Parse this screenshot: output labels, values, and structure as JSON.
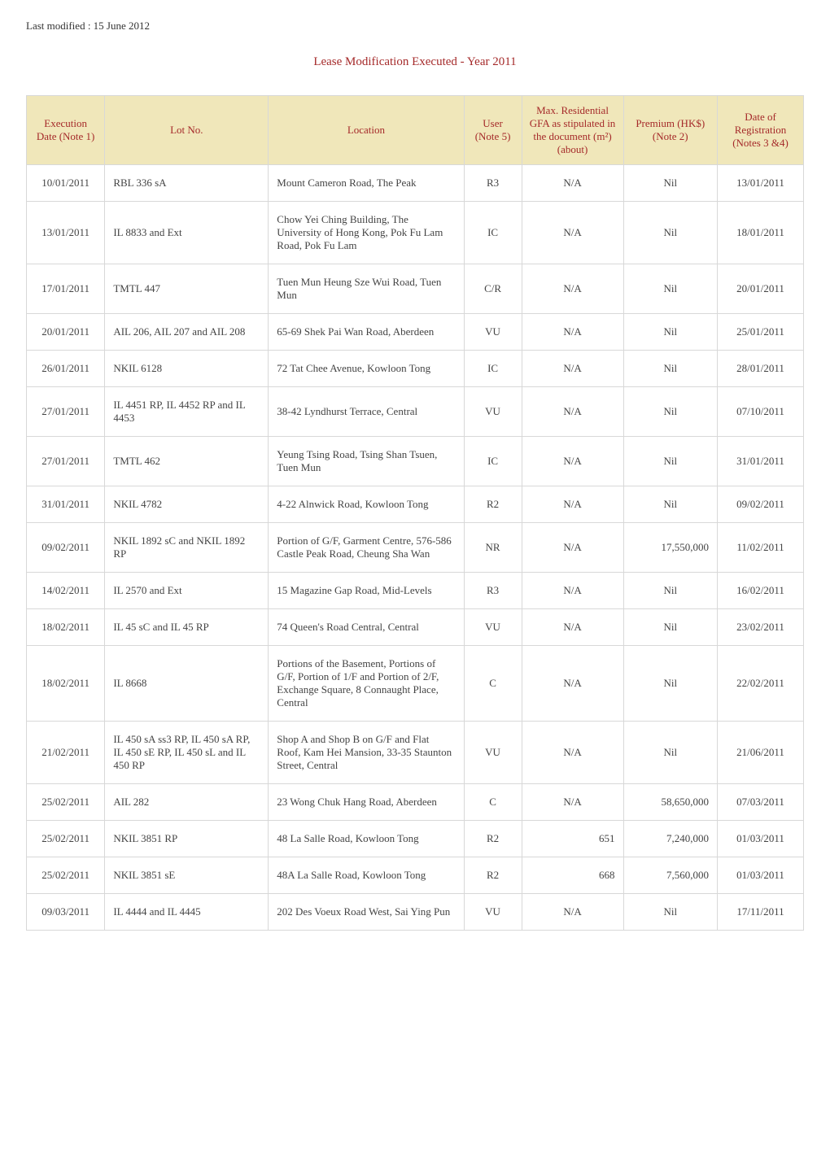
{
  "header": {
    "last_modified": "Last modified : 15 June 2012",
    "title": "Lease Modification Executed  -  Year 2011"
  },
  "colors": {
    "header_bg": "#f0e7ba",
    "header_text": "#a52a2a",
    "title_text": "#a52a2a",
    "border": "#d8d8d8",
    "body_text": "#444444"
  },
  "table": {
    "columns": [
      {
        "key": "exec",
        "label": "Execution Date (Note 1)"
      },
      {
        "key": "lot",
        "label": "Lot No."
      },
      {
        "key": "location",
        "label": "Location"
      },
      {
        "key": "user",
        "label": "User (Note 5)"
      },
      {
        "key": "gfa",
        "label": "Max. Residential GFA as stipulated in the document (m²)(about)"
      },
      {
        "key": "premium",
        "label": "Premium (HK$) (Note 2)"
      },
      {
        "key": "reg",
        "label": "Date of Registration (Notes 3 &4)"
      }
    ],
    "rows": [
      {
        "exec": "10/01/2011",
        "lot": "RBL 336 sA",
        "location": "Mount Cameron Road, The Peak",
        "user": "R3",
        "gfa": "N/A",
        "premium": "Nil",
        "reg": "13/01/2011"
      },
      {
        "exec": "13/01/2011",
        "lot": "IL 8833 and Ext",
        "location": "Chow Yei Ching Building, The University of Hong Kong, Pok Fu Lam Road, Pok Fu Lam",
        "user": "IC",
        "gfa": "N/A",
        "premium": "Nil",
        "reg": "18/01/2011"
      },
      {
        "exec": "17/01/2011",
        "lot": "TMTL 447",
        "location": "Tuen Mun Heung Sze Wui Road, Tuen Mun",
        "user": "C/R",
        "gfa": "N/A",
        "premium": "Nil",
        "reg": "20/01/2011"
      },
      {
        "exec": "20/01/2011",
        "lot": "AIL 206, AIL 207 and AIL 208",
        "location": "65-69 Shek Pai Wan Road, Aberdeen",
        "user": "VU",
        "gfa": "N/A",
        "premium": "Nil",
        "reg": "25/01/2011"
      },
      {
        "exec": "26/01/2011",
        "lot": "NKIL 6128",
        "location": "72 Tat Chee Avenue, Kowloon Tong",
        "user": "IC",
        "gfa": "N/A",
        "premium": "Nil",
        "reg": "28/01/2011"
      },
      {
        "exec": "27/01/2011",
        "lot": "IL 4451 RP, IL 4452 RP and IL 4453",
        "location": "38-42 Lyndhurst Terrace, Central",
        "user": "VU",
        "gfa": "N/A",
        "premium": "Nil",
        "reg": "07/10/2011"
      },
      {
        "exec": "27/01/2011",
        "lot": "TMTL 462",
        "location": "Yeung Tsing Road, Tsing Shan Tsuen, Tuen Mun",
        "user": "IC",
        "gfa": "N/A",
        "premium": "Nil",
        "reg": "31/01/2011"
      },
      {
        "exec": "31/01/2011",
        "lot": "NKIL 4782",
        "location": "4-22 Alnwick Road, Kowloon Tong",
        "user": "R2",
        "gfa": "N/A",
        "premium": "Nil",
        "reg": "09/02/2011"
      },
      {
        "exec": "09/02/2011",
        "lot": "NKIL 1892 sC and NKIL 1892 RP",
        "location": "Portion of G/F, Garment Centre, 576-586 Castle Peak Road, Cheung Sha Wan",
        "user": "NR",
        "gfa": "N/A",
        "premium": "17,550,000",
        "reg": "11/02/2011"
      },
      {
        "exec": "14/02/2011",
        "lot": "IL 2570 and Ext",
        "location": "15 Magazine Gap Road, Mid-Levels",
        "user": "R3",
        "gfa": "N/A",
        "premium": "Nil",
        "reg": "16/02/2011"
      },
      {
        "exec": "18/02/2011",
        "lot": "IL 45 sC and IL 45 RP",
        "location": "74 Queen's Road Central, Central",
        "user": "VU",
        "gfa": "N/A",
        "premium": "Nil",
        "reg": "23/02/2011"
      },
      {
        "exec": "18/02/2011",
        "lot": "IL 8668",
        "location": "Portions of the Basement, Portions of G/F, Portion of 1/F and Portion of 2/F, Exchange Square, 8 Connaught Place, Central",
        "user": "C",
        "gfa": "N/A",
        "premium": "Nil",
        "reg": "22/02/2011"
      },
      {
        "exec": "21/02/2011",
        "lot": "IL 450 sA ss3 RP, IL 450 sA RP, IL 450 sE RP, IL 450 sL and IL 450 RP",
        "location": "Shop A and Shop B on G/F and Flat Roof, Kam Hei Mansion, 33-35 Staunton Street, Central",
        "user": "VU",
        "gfa": "N/A",
        "premium": "Nil",
        "reg": "21/06/2011"
      },
      {
        "exec": "25/02/2011",
        "lot": "AIL 282",
        "location": "23 Wong Chuk Hang Road, Aberdeen",
        "user": "C",
        "gfa": "N/A",
        "premium": "58,650,000",
        "reg": "07/03/2011"
      },
      {
        "exec": "25/02/2011",
        "lot": "NKIL 3851 RP",
        "location": "48 La Salle Road, Kowloon Tong",
        "user": "R2",
        "gfa": "651",
        "premium": "7,240,000",
        "reg": "01/03/2011"
      },
      {
        "exec": "25/02/2011",
        "lot": "NKIL 3851 sE",
        "location": "48A La Salle Road, Kowloon Tong",
        "user": "R2",
        "gfa": "668",
        "premium": "7,560,000",
        "reg": "01/03/2011"
      },
      {
        "exec": "09/03/2011",
        "lot": "IL 4444 and IL 4445",
        "location": "202 Des Voeux Road West, Sai Ying Pun",
        "user": "VU",
        "gfa": "N/A",
        "premium": "Nil",
        "reg": "17/11/2011"
      }
    ]
  }
}
